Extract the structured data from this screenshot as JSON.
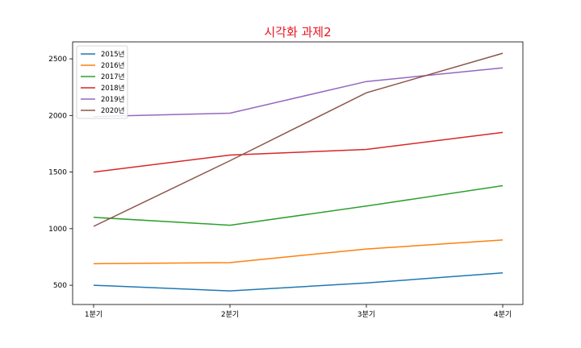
{
  "chart_data": {
    "type": "line",
    "title": "시각화 과제2",
    "title_color": "#e8141e",
    "xlabel": "",
    "ylabel": "",
    "categories": [
      "1분기",
      "2분기",
      "3분기",
      "4분기"
    ],
    "ylim": [
      330,
      2650
    ],
    "yticks": [
      500,
      1000,
      1500,
      2000,
      2500
    ],
    "grid": false,
    "legend_position": "top-left",
    "series": [
      {
        "name": "2015년",
        "color": "#1f77b4",
        "values": [
          500,
          450,
          520,
          610
        ]
      },
      {
        "name": "2016년",
        "color": "#ff7f0e",
        "values": [
          690,
          700,
          820,
          900
        ]
      },
      {
        "name": "2017년",
        "color": "#2ca02c",
        "values": [
          1100,
          1030,
          1200,
          1380
        ]
      },
      {
        "name": "2018년",
        "color": "#d62728",
        "values": [
          1500,
          1650,
          1700,
          1850
        ]
      },
      {
        "name": "2019년",
        "color": "#9467bd",
        "values": [
          1990,
          2020,
          2300,
          2420
        ]
      },
      {
        "name": "2020년",
        "color": "#8c564b",
        "values": [
          1020,
          1600,
          2200,
          2550
        ]
      }
    ]
  }
}
